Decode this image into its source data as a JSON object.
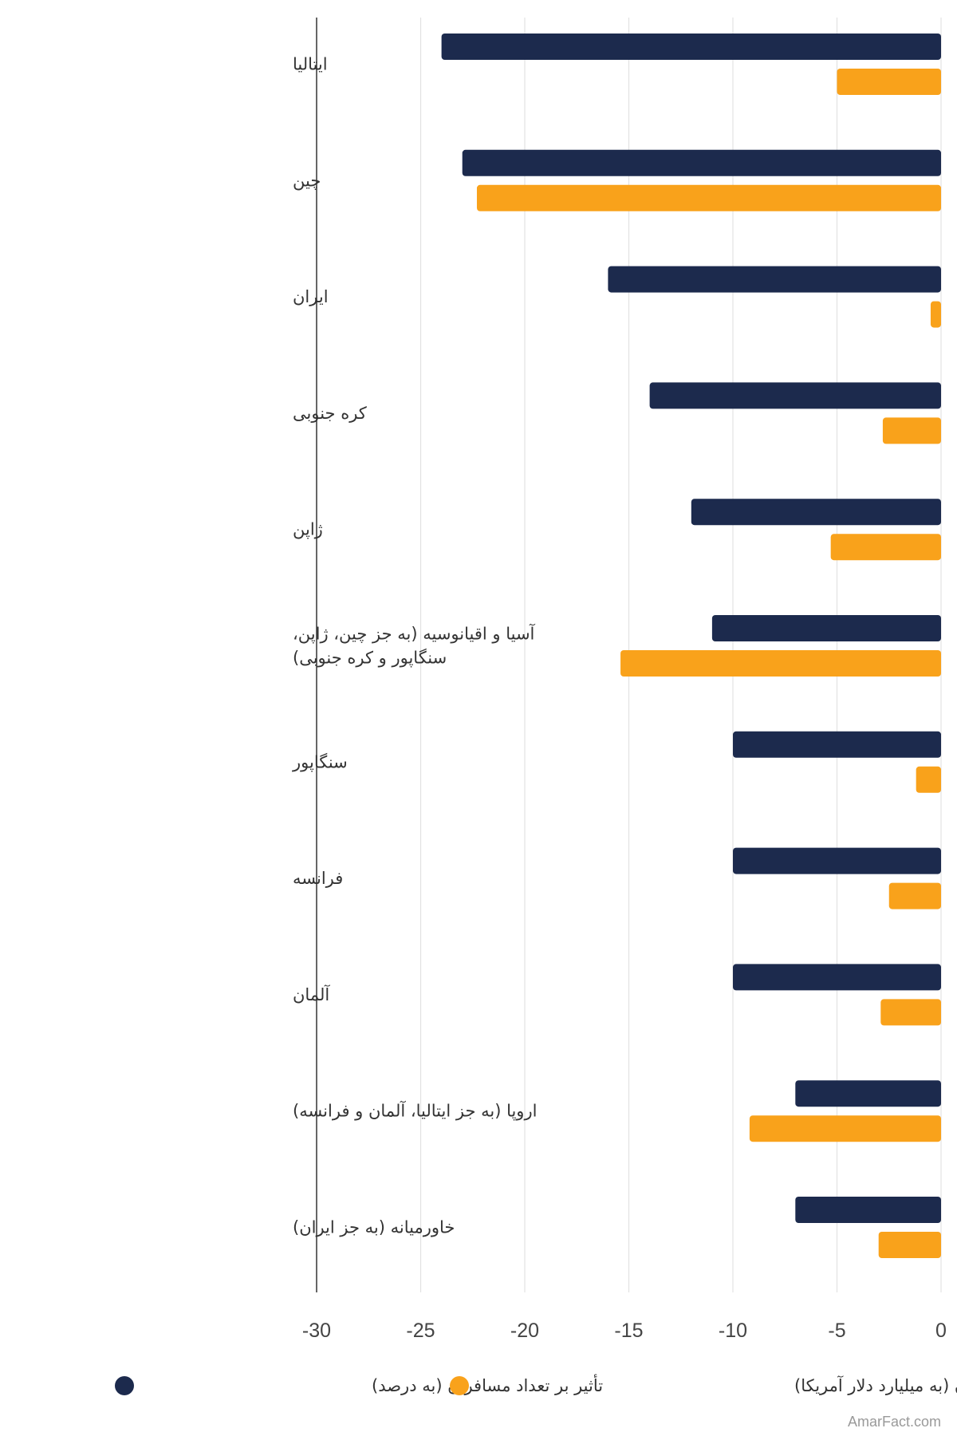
{
  "chart_data": {
    "type": "bar",
    "orientation": "horizontal",
    "categories": [
      "ایتالیا",
      "چین",
      "ایران",
      "کره جنوبی",
      "ژاپن",
      "آسیا و اقیانوسیه (به جز چین، ژاپن، سنگاپور و کره جنوبی)",
      "سنگاپور",
      "فرانسه",
      "آلمان",
      "اروپا (به جز ایتالیا، آلمان و فرانسه)",
      "خاورمیانه (به جز ایران)"
    ],
    "category_lines": [
      [
        "ایتالیا"
      ],
      [
        "چین"
      ],
      [
        "ایران"
      ],
      [
        "کره جنوبی"
      ],
      [
        "ژاپن"
      ],
      [
        "آسیا و اقیانوسیه (به جز چین، ژاپن،",
        "سنگاپور و کره جنوبی)"
      ],
      [
        "سنگاپور"
      ],
      [
        "فرانسه"
      ],
      [
        "آلمان"
      ],
      [
        "اروپا (به جز ایتالیا، آلمان و فرانسه)"
      ],
      [
        "خاورمیانه (به جز ایران)"
      ]
    ],
    "series": [
      {
        "name": "تأثیر بر تعداد مسافران (به درصد)",
        "color": "#1c2a4d",
        "values": [
          -24,
          -23,
          -16,
          -14,
          -12,
          -11,
          -10,
          -10,
          -10,
          -7,
          -7
        ]
      },
      {
        "name": "تأثیر بر درآمد مسافران (به میلیارد دلار آمریکا)",
        "color": "#f9a21b",
        "values": [
          -5,
          -22.3,
          -0.5,
          -2.8,
          -5.3,
          -15.4,
          -1.2,
          -2.5,
          -2.9,
          -9.2,
          -3
        ]
      }
    ],
    "xlim": [
      -30,
      0
    ],
    "xticks": [
      -30,
      -25,
      -20,
      -15,
      -10,
      -5,
      0
    ],
    "xtick_labels": [
      "-30",
      "-25",
      "-20",
      "-15",
      "-10",
      "-5",
      "0"
    ],
    "grid": true,
    "legend_position": "bottom"
  },
  "watermark": "AmarFact.com"
}
